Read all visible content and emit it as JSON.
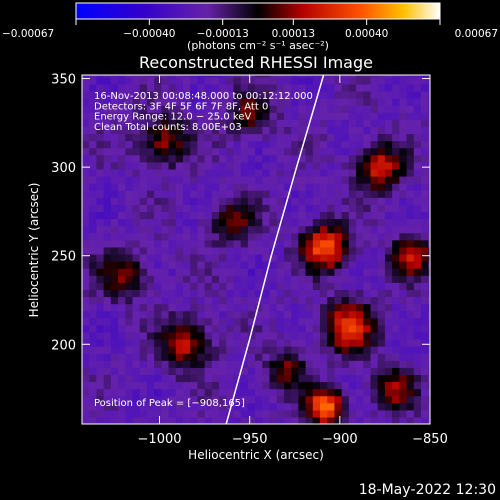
{
  "chart_data": {
    "type": "heatmap",
    "title": "Reconstructed RHESSI Image",
    "xlabel": "Heliocentric X (arcsec)",
    "ylabel": "Heliocentric Y (arcsec)",
    "xlim": [
      -1043,
      -850
    ],
    "ylim": [
      155,
      352
    ],
    "xticks": [
      -1000,
      -950,
      -900,
      -850
    ],
    "xtick_labels": [
      "−1000",
      "−950",
      "−900",
      "−850"
    ],
    "yticks": [
      200,
      250,
      300,
      350
    ],
    "ytick_labels": [
      "200",
      "250",
      "300",
      "350"
    ],
    "colorbar": {
      "units": "(photons cm⁻² s⁻¹ asec⁻²)",
      "range": [
        -0.00067,
        0.00067
      ],
      "ticks": [
        -0.00067,
        -0.0004,
        -0.00013,
        0.00013,
        0.0004,
        0.00067
      ],
      "tick_labels": [
        "−0.00067",
        "−0.00040",
        "−0.00013",
        "0.00013",
        "0.00040",
        "0.00067"
      ]
    },
    "annotations": [
      "16‑Nov‑2013 00:08:48.000 to 00:12:12.000",
      "Detectors: 3F 4F 5F 6F 7F 8F, Att 0",
      "Energy Range: 12.0 − 25.0 keV",
      "Clean     Total counts: 8.00E+03"
    ],
    "peak_label": "Position of Peak = [−908,165]",
    "peak": [
      -908,
      165
    ],
    "limb_points": [
      [
        -963,
        155
      ],
      [
        -950,
        203
      ],
      [
        -938,
        250
      ],
      [
        -924,
        300
      ],
      [
        -909,
        352
      ]
    ],
    "hot_spots": [
      {
        "x": -908,
        "y": 165,
        "amp": 0.00067,
        "sigma": 7
      },
      {
        "x": -895,
        "y": 210,
        "amp": 0.0005,
        "sigma": 10
      },
      {
        "x": -908,
        "y": 255,
        "amp": 0.00058,
        "sigma": 9
      },
      {
        "x": -878,
        "y": 300,
        "amp": 0.00045,
        "sigma": 9
      },
      {
        "x": -860,
        "y": 250,
        "amp": 0.0004,
        "sigma": 8
      },
      {
        "x": -998,
        "y": 315,
        "amp": 0.00035,
        "sigma": 10
      },
      {
        "x": -985,
        "y": 200,
        "amp": 0.0004,
        "sigma": 10
      },
      {
        "x": -960,
        "y": 270,
        "amp": 0.0003,
        "sigma": 9
      },
      {
        "x": -1020,
        "y": 240,
        "amp": 0.0003,
        "sigma": 10
      },
      {
        "x": -950,
        "y": 330,
        "amp": 0.00028,
        "sigma": 9
      },
      {
        "x": -930,
        "y": 185,
        "amp": 0.00032,
        "sigma": 8
      },
      {
        "x": -870,
        "y": 175,
        "amp": 0.00036,
        "sigma": 8
      }
    ]
  },
  "footer_timestamp": "18‑May‑2022 12:30"
}
